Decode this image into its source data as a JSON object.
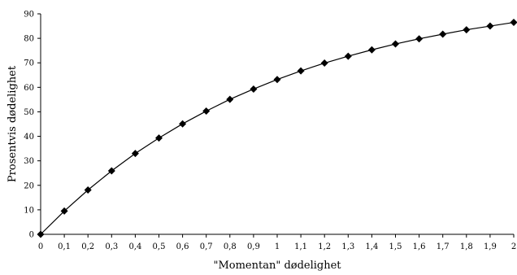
{
  "chart_data": {
    "type": "line",
    "title": "",
    "xlabel": "\"Momentan\" dødelighet",
    "ylabel": "Prosentvis dødelighet",
    "x": [
      0,
      0.1,
      0.2,
      0.3,
      0.4,
      0.5,
      0.6,
      0.7,
      0.8,
      0.9,
      1.0,
      1.1,
      1.2,
      1.3,
      1.4,
      1.5,
      1.6,
      1.7,
      1.8,
      1.9,
      2.0
    ],
    "x_tick_labels": [
      "0",
      "0,1",
      "0,2",
      "0,3",
      "0,4",
      "0,5",
      "0,6",
      "0,7",
      "0,8",
      "0,9",
      "1",
      "1,1",
      "1,2",
      "1,3",
      "1,4",
      "1,5",
      "1,6",
      "1,7",
      "1,8",
      "1,9",
      "2"
    ],
    "xlim": [
      0,
      2
    ],
    "ylim": [
      0,
      90
    ],
    "y_ticks": [
      0,
      10,
      20,
      30,
      40,
      50,
      60,
      70,
      80,
      90
    ],
    "series": [
      {
        "marker": "diamond",
        "color": "#000000",
        "values": [
          0,
          9.5,
          18.1,
          25.9,
          33.0,
          39.3,
          45.1,
          50.3,
          55.1,
          59.3,
          63.2,
          66.7,
          69.9,
          72.7,
          75.3,
          77.7,
          79.8,
          81.7,
          83.5,
          85.0,
          86.5
        ]
      }
    ],
    "grid": false,
    "legend": "none"
  }
}
